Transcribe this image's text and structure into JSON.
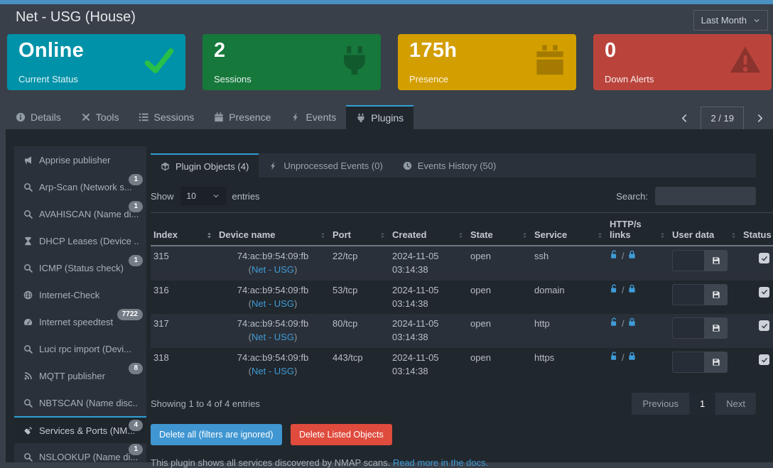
{
  "colors": {
    "top_accent": "#4a90c2",
    "tab_accent": "#2f9fd6",
    "link": "#3f9bd7",
    "delete_all_button": "#3f96d1",
    "delete_listed_button": "#df4b3d"
  },
  "titlebar": {
    "title": "Net - USG (House)",
    "period": "Last Month"
  },
  "cards": [
    {
      "value": "Online",
      "label": "Current Status",
      "icon": "check",
      "bg": "#0092a8",
      "icon_color": "#29c048"
    },
    {
      "value": "2",
      "label": "Sessions",
      "icon": "plug",
      "bg": "#17783c",
      "icon_color": "rgba(0,0,0,0.25)"
    },
    {
      "value": "175h",
      "label": "Presence",
      "icon": "calendar",
      "bg": "#d39e00",
      "icon_color": "rgba(0,0,0,0.22)"
    },
    {
      "value": "0",
      "label": "Down Alerts",
      "icon": "warning",
      "bg": "#ba443c",
      "icon_color": "rgba(0,0,0,0.25)"
    }
  ],
  "tabs": [
    {
      "label": "Details",
      "icon": "info"
    },
    {
      "label": "Tools",
      "icon": "tools"
    },
    {
      "label": "Sessions",
      "icon": "list"
    },
    {
      "label": "Presence",
      "icon": "calendar"
    },
    {
      "label": "Events",
      "icon": "bolt"
    },
    {
      "label": "Plugins",
      "icon": "plug",
      "active": true
    }
  ],
  "device_pager": {
    "current": "2 / 19"
  },
  "sidebar": {
    "items": [
      {
        "label": "Apprise publisher",
        "icon": "bullhorn"
      },
      {
        "label": "Arp-Scan (Network s...",
        "icon": "search",
        "badge": "1"
      },
      {
        "label": "AVAHISCAN (Name di...",
        "icon": "search",
        "badge": "1"
      },
      {
        "label": "DHCP Leases (Device ...",
        "icon": "hourglass"
      },
      {
        "label": "ICMP (Status check)",
        "icon": "search",
        "badge": "1"
      },
      {
        "label": "Internet-Check",
        "icon": "globe"
      },
      {
        "label": "Internet speedtest",
        "icon": "tachometer",
        "badge": "7722"
      },
      {
        "label": "Luci rpc import (Devi...",
        "icon": "search"
      },
      {
        "label": "MQTT publisher",
        "icon": "rss",
        "badge": "8"
      },
      {
        "label": "NBTSCAN (Name disc...",
        "icon": "search"
      },
      {
        "label": "Services & Ports (NM...",
        "icon": "satellite",
        "badge": "4",
        "active": true
      },
      {
        "label": "NSLOOKUP (Name di...",
        "icon": "search",
        "badge": "1"
      }
    ]
  },
  "panel": {
    "tabs": [
      {
        "label": "Plugin Objects (4)",
        "icon": "cube",
        "active": true
      },
      {
        "label": "Unprocessed Events (0)",
        "icon": "bolt"
      },
      {
        "label": "Events History (50)",
        "icon": "clock"
      }
    ],
    "show_label": "Show",
    "page_size": "10",
    "entries_label": "entries",
    "search_label": "Search:",
    "search_value": "",
    "table": {
      "headers": [
        {
          "label": "Index",
          "active": true
        },
        {
          "label": "Device name"
        },
        {
          "label": "Port"
        },
        {
          "label": "Created"
        },
        {
          "label": "State"
        },
        {
          "label": "Service"
        },
        {
          "label": "HTTP/s links"
        },
        {
          "label": "User data"
        },
        {
          "label": "Status"
        }
      ],
      "rows": [
        {
          "index": "315",
          "mac": "74:ac:b9:54:09:fb",
          "device": "Net - USG",
          "port": "22/tcp",
          "created_date": "2024-11-05",
          "created_time": "03:14:38",
          "state": "open",
          "service": "ssh",
          "user_data": "",
          "status_checked": true
        },
        {
          "index": "316",
          "mac": "74:ac:b9:54:09:fb",
          "device": "Net - USG",
          "port": "53/tcp",
          "created_date": "2024-11-05",
          "created_time": "03:14:38",
          "state": "open",
          "service": "domain",
          "user_data": "",
          "status_checked": true
        },
        {
          "index": "317",
          "mac": "74:ac:b9:54:09:fb",
          "device": "Net - USG",
          "port": "80/tcp",
          "created_date": "2024-11-05",
          "created_time": "03:14:38",
          "state": "open",
          "service": "http",
          "user_data": "",
          "status_checked": true
        },
        {
          "index": "318",
          "mac": "74:ac:b9:54:09:fb",
          "device": "Net - USG",
          "port": "443/tcp",
          "created_date": "2024-11-05",
          "created_time": "03:14:38",
          "state": "open",
          "service": "https",
          "user_data": "",
          "status_checked": true
        }
      ]
    },
    "summary": "Showing 1 to 4 of 4 entries",
    "pagination": {
      "previous": "Previous",
      "current": "1",
      "next": "Next"
    },
    "buttons": {
      "delete_all": "Delete all (filters are ignored)",
      "delete_listed": "Delete Listed Objects"
    },
    "note": "This plugin shows all services discovered by NMAP scans.",
    "note_link": "Read more in the docs."
  }
}
